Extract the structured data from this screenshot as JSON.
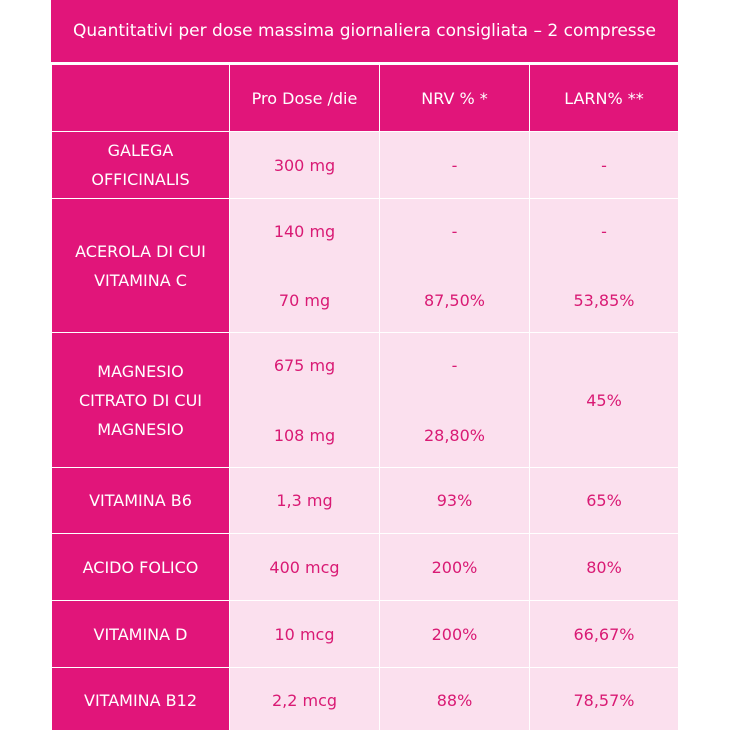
{
  "caption": "Quantitativi per dose massima giornaliera consigliata – 2 compresse",
  "headers": [
    "",
    "Pro Dose /die",
    "NRV % *",
    "LARN% **"
  ],
  "rows": [
    {
      "label_lines": [
        "GALEGA",
        "OFFICINALIS"
      ],
      "dose": [
        "300 mg"
      ],
      "nrv": [
        "-"
      ],
      "larn": [
        "-"
      ]
    },
    {
      "label_lines": [
        "ACEROLA DI CUI",
        "VITAMINA C"
      ],
      "dose": [
        "140 mg",
        "70 mg"
      ],
      "nrv": [
        "-",
        "87,50%"
      ],
      "larn": [
        "-",
        "53,85%"
      ]
    },
    {
      "label_lines": [
        "MAGNESIO",
        "CITRATO DI CUI",
        "MAGNESIO"
      ],
      "dose": [
        "675 mg",
        "108 mg"
      ],
      "nrv": [
        "-",
        "28,80%"
      ],
      "larn": [
        "45%"
      ]
    },
    {
      "label_lines": [
        "VITAMINA B6"
      ],
      "dose": [
        "1,3 mg"
      ],
      "nrv": [
        "93%"
      ],
      "larn": [
        "65%"
      ]
    },
    {
      "label_lines": [
        "ACIDO FOLICO"
      ],
      "dose": [
        "400 mcg"
      ],
      "nrv": [
        "200%"
      ],
      "larn": [
        "80%"
      ]
    },
    {
      "label_lines": [
        "VITAMINA D"
      ],
      "dose": [
        "10 mcg"
      ],
      "nrv": [
        "200%"
      ],
      "larn": [
        "66,67%"
      ]
    },
    {
      "label_lines": [
        "VITAMINA B12"
      ],
      "dose": [
        "2,2 mcg"
      ],
      "nrv": [
        "88%"
      ],
      "larn": [
        "78,57%"
      ]
    }
  ]
}
